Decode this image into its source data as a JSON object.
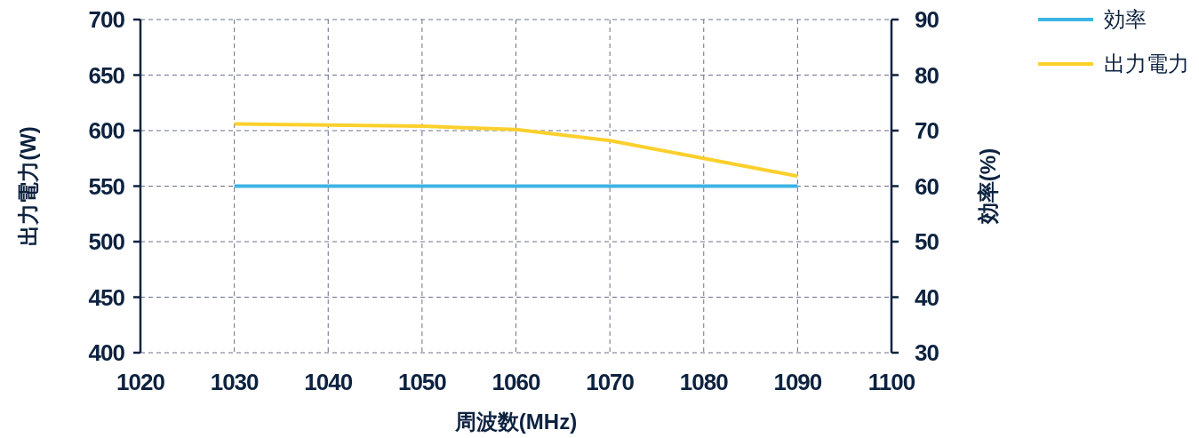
{
  "chart_data": {
    "type": "line",
    "xlabel": "周波数(MHz)",
    "ylabel": "出力電力(W)",
    "y2label": "効率(%)",
    "x": [
      1030,
      1040,
      1050,
      1060,
      1070,
      1080,
      1090
    ],
    "series": [
      {
        "name": "効率",
        "color": "#3db4e5",
        "axis": "y2",
        "values": [
          60,
          60,
          60,
          60,
          60,
          60,
          60
        ]
      },
      {
        "name": "出力電力",
        "color": "#fcd02c",
        "values": [
          606,
          605,
          604,
          601,
          591,
          575,
          559
        ]
      }
    ],
    "xlim": [
      1020,
      1100
    ],
    "xticks": [
      1020,
      1030,
      1040,
      1050,
      1060,
      1070,
      1080,
      1090,
      1100
    ],
    "ylim": [
      400,
      700
    ],
    "yticks": [
      400,
      450,
      500,
      550,
      600,
      650,
      700
    ],
    "y2lim": [
      30,
      90
    ],
    "y2ticks": [
      30,
      40,
      50,
      60,
      70,
      80,
      90
    ],
    "grid": true,
    "legend": "top right",
    "marker": "none",
    "line_style": "solid"
  }
}
